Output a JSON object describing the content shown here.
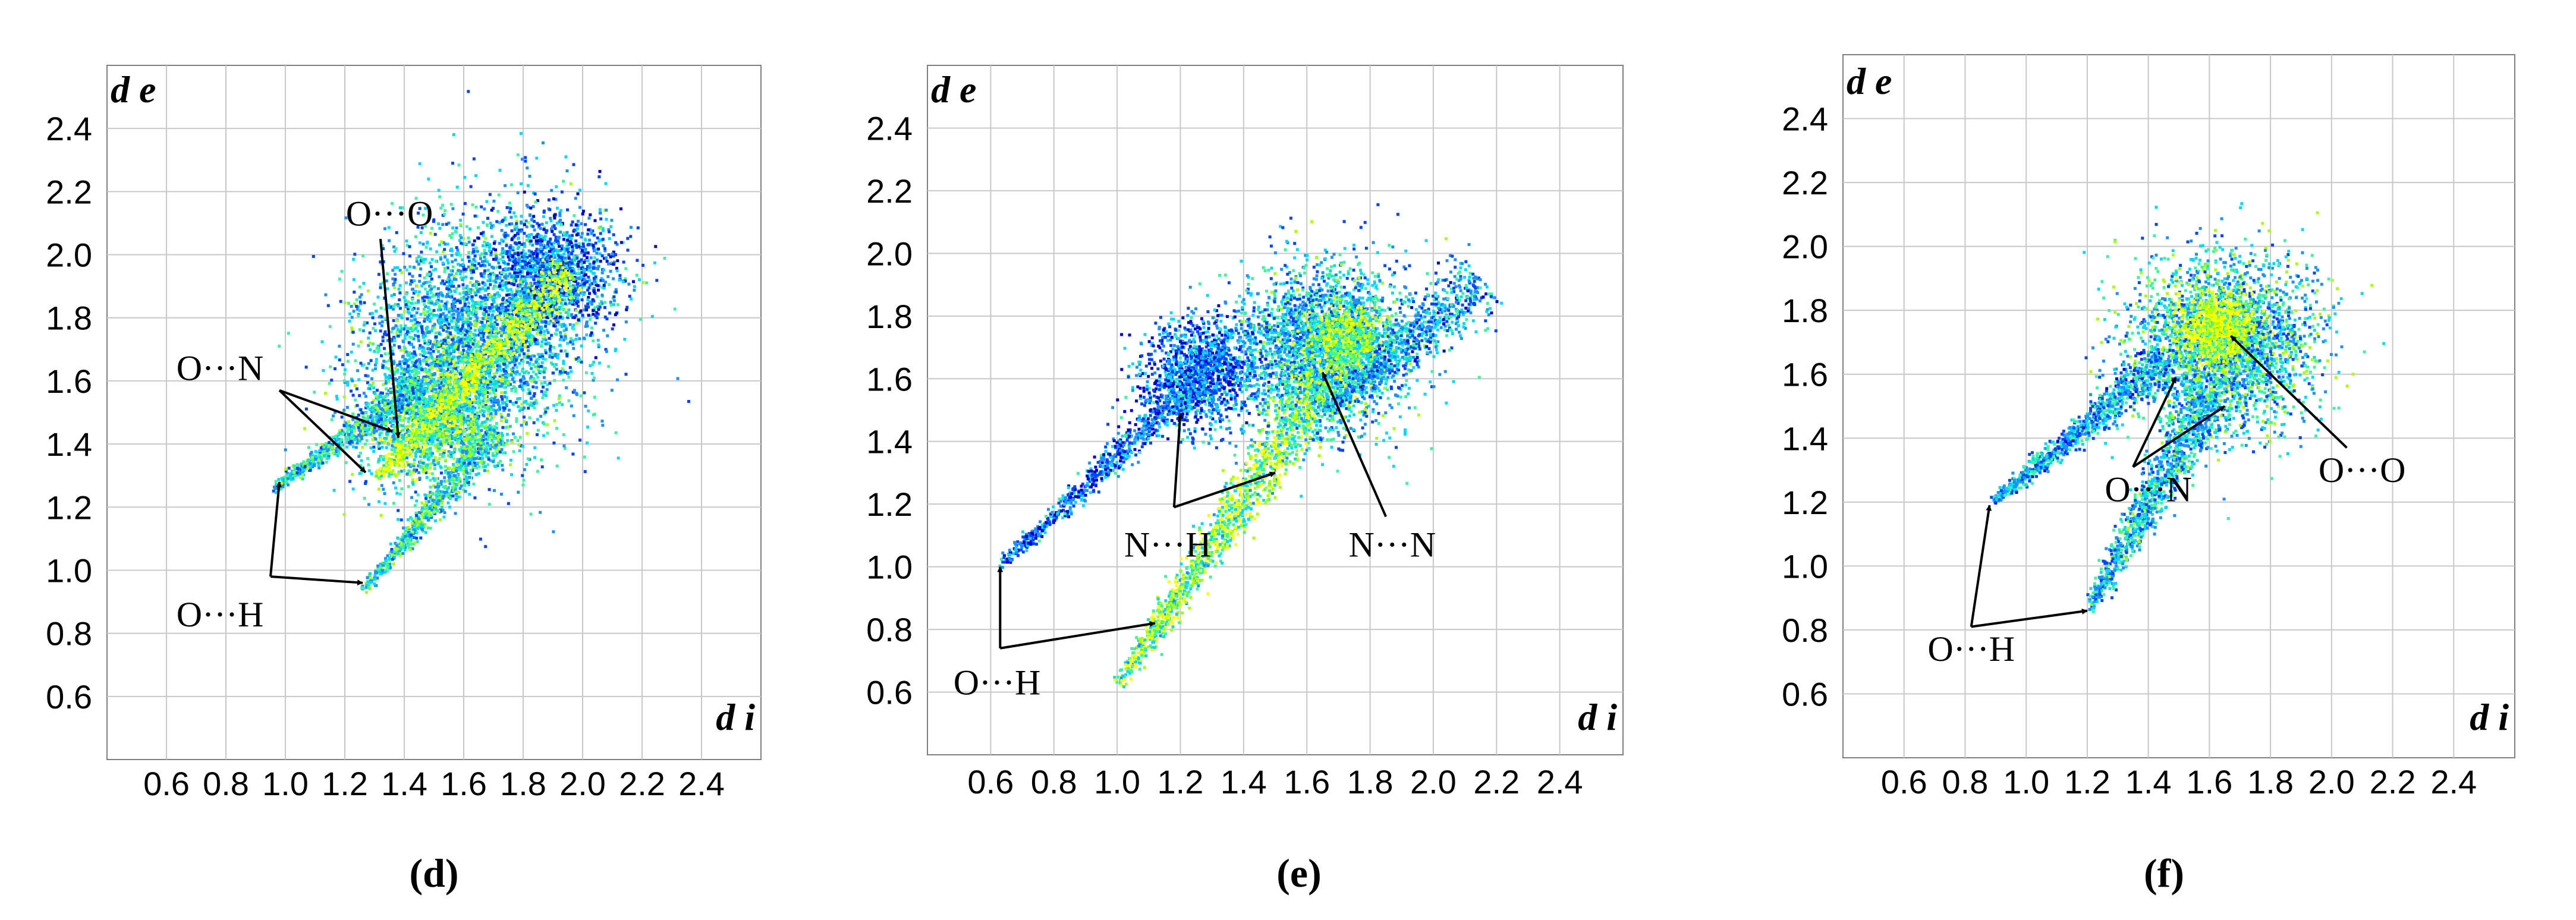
{
  "chart_data": [
    {
      "type": "scatter",
      "panel_label": "d",
      "caption": "(d)",
      "ylabel": "d e",
      "xlabel": "d i",
      "x_ticks": [
        "0.6",
        "0.8",
        "1.0",
        "1.2",
        "1.4",
        "1.6",
        "1.8",
        "2.0",
        "2.2",
        "2.4"
      ],
      "y_ticks": [
        "0.6",
        "0.8",
        "1.0",
        "1.2",
        "1.4",
        "1.6",
        "1.8",
        "2.0",
        "2.2",
        "2.4"
      ],
      "xlim": [
        0.4,
        2.6
      ],
      "ylim": [
        0.4,
        2.6
      ],
      "grid": true,
      "colormap": [
        "#0000cc",
        "#0044ff",
        "#1e90ff",
        "#00d8ff",
        "#3cf5a0",
        "#aaff00",
        "#ffff00"
      ],
      "density_regions": [
        {
          "type": "blob",
          "center": [
            1.62,
            1.72
          ],
          "spread": [
            0.42,
            0.36
          ],
          "angle": 45,
          "n": 3600,
          "intensity": 0.45
        },
        {
          "type": "blob",
          "center": [
            1.9,
            1.95
          ],
          "spread": [
            0.22,
            0.2
          ],
          "angle": 30,
          "n": 1200,
          "intensity": 0.3
        },
        {
          "type": "blob",
          "center": [
            1.5,
            1.5
          ],
          "spread": [
            0.25,
            0.15
          ],
          "angle": 45,
          "n": 1200,
          "intensity": 0.65
        },
        {
          "type": "spike",
          "from": [
            0.95,
            1.26
          ],
          "to": [
            1.45,
            1.6
          ],
          "width": 0.05,
          "n": 700,
          "intensity": 0.5
        },
        {
          "type": "spike",
          "from": [
            1.26,
            0.94
          ],
          "to": [
            1.7,
            1.45
          ],
          "width": 0.05,
          "n": 700,
          "intensity": 0.55
        },
        {
          "type": "spike",
          "from": [
            1.3,
            1.3
          ],
          "to": [
            1.95,
            1.95
          ],
          "width": 0.06,
          "n": 900,
          "intensity": 0.85
        }
      ],
      "annotations": [
        {
          "text": "O···O",
          "label_at": [
            1.35,
            2.13
          ],
          "arrows": [
            {
              "from": [
                1.32,
                2.05
              ],
              "to": [
                1.38,
                1.42
              ]
            }
          ]
        },
        {
          "text": "O···N",
          "label_at": [
            0.78,
            1.64
          ],
          "arrows": [
            {
              "from": [
                0.98,
                1.57
              ],
              "to": [
                1.36,
                1.44
              ]
            },
            {
              "from": [
                0.98,
                1.57
              ],
              "to": [
                1.27,
                1.31
              ]
            }
          ]
        },
        {
          "text": "O···H",
          "label_at": [
            0.78,
            0.86
          ],
          "arrows": [
            {
              "from": [
                0.95,
                0.98
              ],
              "to": [
                0.98,
                1.28
              ]
            },
            {
              "from": [
                0.95,
                0.98
              ],
              "to": [
                1.26,
                0.96
              ]
            }
          ]
        }
      ]
    },
    {
      "type": "scatter",
      "panel_label": "e",
      "caption": "(e)",
      "ylabel": "d e",
      "xlabel": "d i",
      "x_ticks": [
        "0.6",
        "0.8",
        "1.0",
        "1.2",
        "1.4",
        "1.6",
        "1.8",
        "2.0",
        "2.2",
        "2.4"
      ],
      "y_ticks": [
        "0.6",
        "0.8",
        "1.0",
        "1.2",
        "1.4",
        "1.6",
        "1.8",
        "2.0",
        "2.2",
        "2.4"
      ],
      "xlim": [
        0.4,
        2.6
      ],
      "ylim": [
        0.4,
        2.6
      ],
      "grid": true,
      "colormap": [
        "#0000cc",
        "#0044ff",
        "#1e90ff",
        "#00d8ff",
        "#3cf5a0",
        "#aaff00",
        "#ffff00"
      ],
      "density_regions": [
        {
          "type": "blob",
          "center": [
            1.65,
            1.7
          ],
          "spread": [
            0.3,
            0.26
          ],
          "angle": 20,
          "n": 2600,
          "intensity": 0.45
        },
        {
          "type": "blob",
          "center": [
            1.72,
            1.72
          ],
          "spread": [
            0.12,
            0.12
          ],
          "angle": 0,
          "n": 700,
          "intensity": 0.75
        },
        {
          "type": "blob",
          "center": [
            1.25,
            1.62
          ],
          "spread": [
            0.2,
            0.17
          ],
          "angle": 30,
          "n": 1100,
          "intensity": 0.3
        },
        {
          "type": "spike",
          "from": [
            0.62,
            1.0
          ],
          "to": [
            1.35,
            1.7
          ],
          "width": 0.05,
          "n": 900,
          "intensity": 0.3
        },
        {
          "type": "spike",
          "from": [
            1.0,
            0.63
          ],
          "to": [
            1.65,
            1.6
          ],
          "width": 0.07,
          "n": 1400,
          "intensity": 0.7
        },
        {
          "type": "spike",
          "from": [
            1.65,
            1.5
          ],
          "to": [
            2.15,
            1.92
          ],
          "width": 0.08,
          "n": 700,
          "intensity": 0.4
        }
      ],
      "annotations": [
        {
          "text": "N···N",
          "label_at": [
            1.87,
            1.07
          ],
          "arrows": [
            {
              "from": [
                1.85,
                1.16
              ],
              "to": [
                1.65,
                1.62
              ]
            }
          ]
        },
        {
          "text": "N···H",
          "label_at": [
            1.16,
            1.07
          ],
          "arrows": [
            {
              "from": [
                1.18,
                1.19
              ],
              "to": [
                1.2,
                1.49
              ]
            },
            {
              "from": [
                1.18,
                1.19
              ],
              "to": [
                1.5,
                1.3
              ]
            }
          ]
        },
        {
          "text": "O···H",
          "label_at": [
            0.62,
            0.63
          ],
          "arrows": [
            {
              "from": [
                0.63,
                0.74
              ],
              "to": [
                0.63,
                1.0
              ]
            },
            {
              "from": [
                0.63,
                0.74
              ],
              "to": [
                1.12,
                0.82
              ]
            }
          ]
        }
      ]
    },
    {
      "type": "scatter",
      "panel_label": "f",
      "caption": "(f)",
      "ylabel": "d e",
      "xlabel": "d i",
      "x_ticks": [
        "0.6",
        "0.8",
        "1.0",
        "1.2",
        "1.4",
        "1.6",
        "1.8",
        "2.0",
        "2.2",
        "2.4"
      ],
      "y_ticks": [
        "0.6",
        "0.8",
        "1.0",
        "1.2",
        "1.4",
        "1.6",
        "1.8",
        "2.0",
        "2.2",
        "2.4"
      ],
      "xlim": [
        0.4,
        2.6
      ],
      "ylim": [
        0.4,
        2.6
      ],
      "grid": true,
      "colormap": [
        "#0000cc",
        "#0044ff",
        "#1e90ff",
        "#00d8ff",
        "#3cf5a0",
        "#aaff00",
        "#ffff00"
      ],
      "density_regions": [
        {
          "type": "blob",
          "center": [
            1.65,
            1.7
          ],
          "spread": [
            0.3,
            0.27
          ],
          "angle": 10,
          "n": 2800,
          "intensity": 0.5
        },
        {
          "type": "blob",
          "center": [
            1.62,
            1.75
          ],
          "spread": [
            0.12,
            0.1
          ],
          "angle": 0,
          "n": 800,
          "intensity": 0.9
        },
        {
          "type": "spike",
          "from": [
            0.88,
            1.2
          ],
          "to": [
            1.45,
            1.65
          ],
          "width": 0.05,
          "n": 900,
          "intensity": 0.4
        },
        {
          "type": "spike",
          "from": [
            1.2,
            0.87
          ],
          "to": [
            1.6,
            1.55
          ],
          "width": 0.07,
          "n": 1100,
          "intensity": 0.45
        }
      ],
      "annotations": [
        {
          "text": "O···O",
          "label_at": [
            2.1,
            1.3
          ],
          "arrows": [
            {
              "from": [
                2.05,
                1.37
              ],
              "to": [
                1.67,
                1.72
              ]
            }
          ]
        },
        {
          "text": "O···N",
          "label_at": [
            1.4,
            1.24
          ],
          "arrows": [
            {
              "from": [
                1.35,
                1.31
              ],
              "to": [
                1.49,
                1.59
              ]
            },
            {
              "from": [
                1.35,
                1.31
              ],
              "to": [
                1.65,
                1.5
              ]
            }
          ]
        },
        {
          "text": "O···H",
          "label_at": [
            0.82,
            0.74
          ],
          "arrows": [
            {
              "from": [
                0.82,
                0.81
              ],
              "to": [
                0.88,
                1.19
              ]
            },
            {
              "from": [
                0.82,
                0.81
              ],
              "to": [
                1.2,
                0.86
              ]
            }
          ]
        }
      ]
    }
  ]
}
